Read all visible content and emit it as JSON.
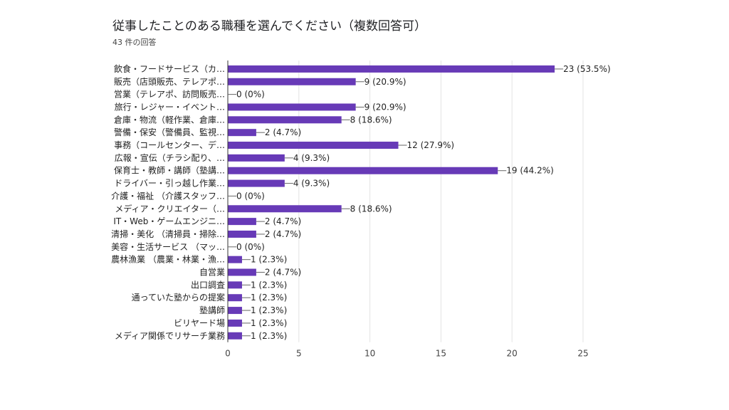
{
  "colors": {
    "bar": "#673ab7",
    "grid": "#e3e3e3",
    "axis": "#333333",
    "leader": "#666666"
  },
  "chart_data": {
    "type": "bar",
    "orientation": "horizontal",
    "title": "従事したことのある職種を選んでください（複数回答可）",
    "subtitle": "43 件の回答",
    "categories": [
      "飲食・フードサービス（カ…",
      "販売（店頭販売、テレアポ…",
      "営業（テレアポ、訪問販売…",
      "旅行・レジャー・イベント…",
      "倉庫・物流（軽作業、倉庫…",
      "警備・保安（警備員、監視…",
      "事務（コールセンター、デ…",
      "広報・宣伝（チラシ配り、…",
      "保育士・教師・講師（塾講…",
      "ドライバー・引っ越し作業…",
      "介護・福祉 （介護スタッフ…",
      "メディア・クリエイター（…",
      "IT・Web・ゲームエンジニ…",
      "清掃・美化 （清掃員・掃除…",
      "美容・生活サービス （マッ…",
      "農林漁業 （農業・林業・漁…",
      "自営業",
      "出口調査",
      "通っていた塾からの提案",
      "塾講師",
      "ビリヤード場",
      "メディア関係でリサーチ業務"
    ],
    "values": [
      23,
      9,
      0,
      9,
      8,
      2,
      12,
      4,
      19,
      4,
      0,
      8,
      2,
      2,
      0,
      1,
      2,
      1,
      1,
      1,
      1,
      1
    ],
    "data_labels": [
      "23 (53.5%)",
      "9 (20.9%)",
      "0 (0%)",
      "9 (20.9%)",
      "8 (18.6%)",
      "2 (4.7%)",
      "12 (27.9%)",
      "4 (9.3%)",
      "19 (44.2%)",
      "4 (9.3%)",
      "0 (0%)",
      "8 (18.6%)",
      "2 (4.7%)",
      "2 (4.7%)",
      "0 (0%)",
      "1 (2.3%)",
      "2 (4.7%)",
      "1 (2.3%)",
      "1 (2.3%)",
      "1 (2.3%)",
      "1 (2.3%)",
      "1 (2.3%)"
    ],
    "xlim": [
      0,
      25
    ],
    "xticks": [
      0,
      5,
      10,
      15,
      20,
      25
    ],
    "xlabel": "",
    "ylabel": "",
    "grid": true
  }
}
